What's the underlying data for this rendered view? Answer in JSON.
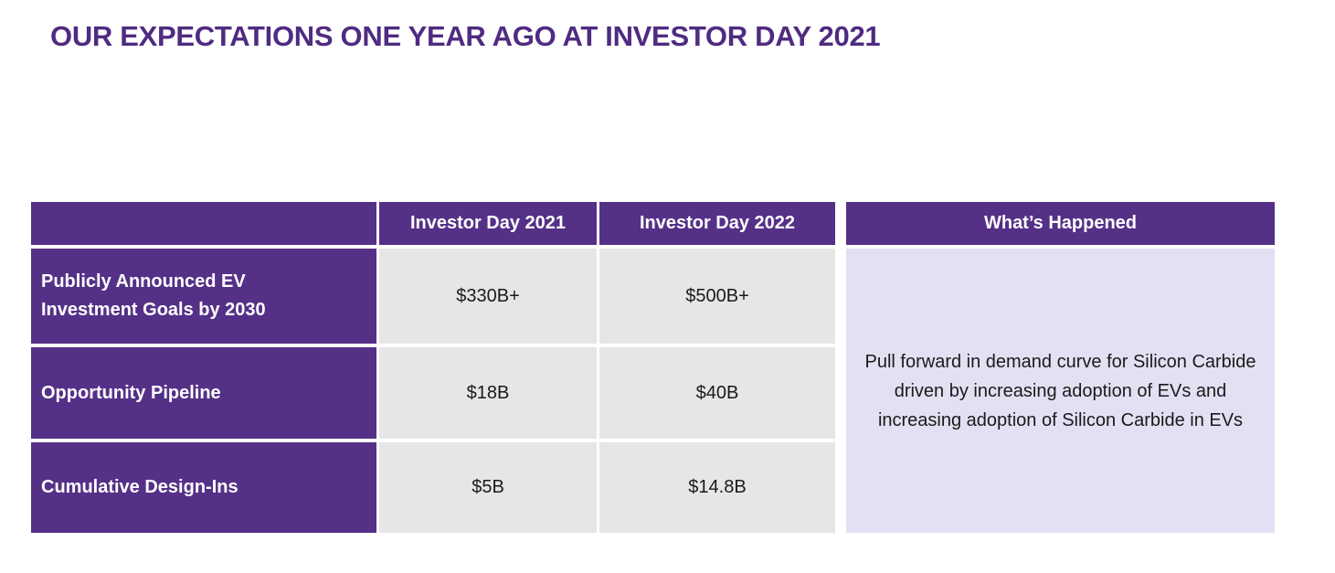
{
  "title": "OUR EXPECTATIONS ONE YEAR AGO AT INVESTOR DAY 2021",
  "colors": {
    "title": "#4F2B81",
    "header_purple": "#553087",
    "row_label_purple": "#553087",
    "value_cell_gray": "#E6E6E6",
    "happened_cell_lavender": "#E5DFF3",
    "header_text": "#FFFFFF",
    "value_text": "#1A1A1A"
  },
  "table": {
    "columns": [
      "",
      "Investor Day 2021",
      "Investor Day 2022",
      "What’s Happened"
    ],
    "rows": [
      {
        "label": "Publicly Announced EV Investment Goals by 2030",
        "investor_day_2021": "$330B+",
        "investor_day_2022": "$500B+"
      },
      {
        "label": "Opportunity Pipeline",
        "investor_day_2021": "$18B",
        "investor_day_2022": "$40B"
      },
      {
        "label": "Cumulative Design-Ins",
        "investor_day_2021": "$5B",
        "investor_day_2022": "$14.8B"
      }
    ],
    "whats_happened_text": "Pull forward in demand curve for Silicon Carbide driven by increasing adoption of EVs and increasing adoption of Silicon Carbide in EVs"
  },
  "chart_data": {
    "type": "table",
    "title": "OUR EXPECTATIONS ONE YEAR AGO AT INVESTOR DAY 2021",
    "columns": [
      "",
      "Investor Day 2021",
      "Investor Day 2022",
      "What's Happened"
    ],
    "rows": [
      [
        "Publicly Announced EV Investment Goals by 2030",
        "$330B+",
        "$500B+",
        "Pull forward in demand curve for Silicon Carbide driven by increasing adoption of EVs and increasing adoption of Silicon Carbide in EVs"
      ],
      [
        "Opportunity Pipeline",
        "$18B",
        "$40B",
        ""
      ],
      [
        "Cumulative Design-Ins",
        "$5B",
        "$14.8B",
        ""
      ]
    ]
  }
}
